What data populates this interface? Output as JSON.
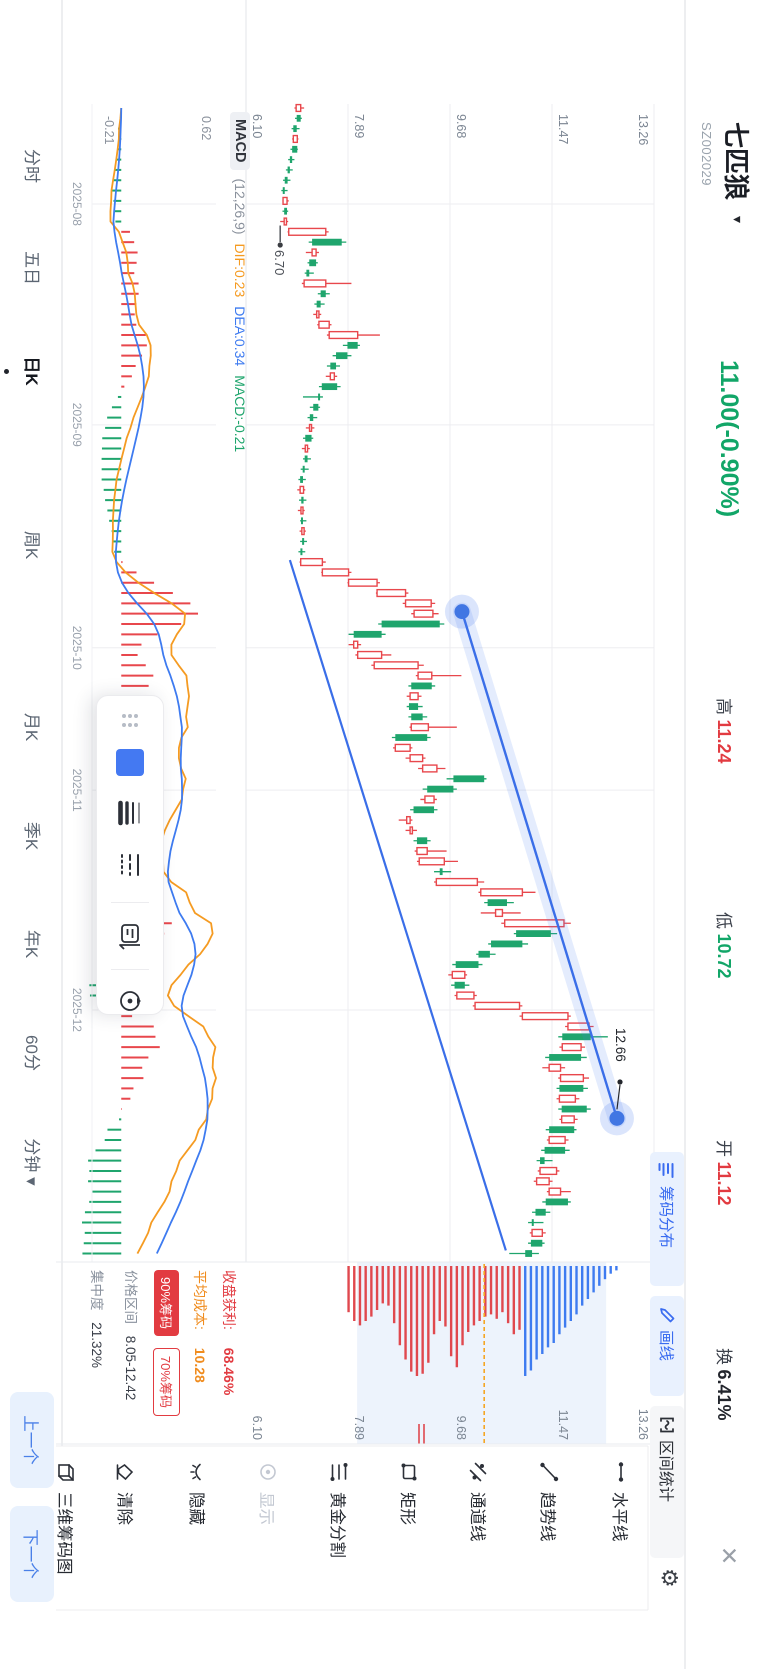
{
  "header": {
    "name": "七匹狼",
    "caret": "▾",
    "code": "SZ002029",
    "price": "11.00(-0.90%)",
    "stats": [
      {
        "label": "高",
        "value": "11.24",
        "color": "red"
      },
      {
        "label": "低",
        "value": "10.72",
        "color": "green"
      },
      {
        "label": "开",
        "value": "11.12",
        "color": "red"
      },
      {
        "label": "换",
        "value": "6.41%",
        "color": "dark"
      }
    ],
    "close_icon": "✕"
  },
  "chips": [
    {
      "label": "筹码分布",
      "active": true
    },
    {
      "label": "画线",
      "active": true
    },
    {
      "label": "区间统计",
      "active": false
    }
  ],
  "gear_icon": "⚙",
  "toolbar": {
    "items": [
      {
        "label": "水平线",
        "icon": "horizontal-line"
      },
      {
        "label": "趋势线",
        "icon": "trend-line"
      },
      {
        "label": "通道线",
        "icon": "channel-line"
      },
      {
        "label": "矩形",
        "icon": "rectangle"
      },
      {
        "label": "黄金分割",
        "icon": "golden-ratio"
      },
      {
        "label": "显示",
        "icon": "show",
        "disabled": true
      },
      {
        "label": "隐藏",
        "icon": "hide"
      },
      {
        "label": "清除",
        "icon": "clear"
      },
      {
        "label": "三维筹码图",
        "icon": "chip-3d"
      }
    ]
  },
  "tabs": {
    "items": [
      "分时",
      "五日",
      "日K",
      "周K",
      "月K",
      "季K",
      "年K",
      "60分",
      "分钟"
    ],
    "active_index": 2,
    "minute_caret": "▾"
  },
  "nav": {
    "prev": "上一个",
    "next": "下一个"
  },
  "macd": {
    "title": "MACD",
    "params": "(12,26,9)",
    "dif": "DIF:0.23",
    "dea": "DEA:0.34",
    "macd": "MACD:-0.21",
    "max": "0.62",
    "min": "-0.21"
  },
  "chip_panel": {
    "profit_label": "收盘获利:",
    "profit_value": "68.46%",
    "cost_label": "平均成本:",
    "cost_value": "10.28",
    "badge90": "90%筹码",
    "badge70": "70%筹码",
    "range_label": "价格区间",
    "range_value": "8.05-12.42",
    "conc_label": "集中度",
    "conc_value": "21.32%"
  },
  "markers": {
    "low": "6.70",
    "line_end": "12.66"
  },
  "colors": {
    "up": "#e8474c",
    "down": "#1fa56d",
    "dif": "#f59b22",
    "dea": "#3e7bf0",
    "accent_blue": "#3a6ee8",
    "chip_red": "#e0484e",
    "chip_blue": "#3e7bf0",
    "avg_line": "#f5a623",
    "grid": "#ededf0"
  },
  "chart_data": {
    "type": "candlestick",
    "title": "七匹狼 SZ002029 日K",
    "y_ticks": [
      "13.26",
      "11.47",
      "9.68",
      "7.89",
      "6.10"
    ],
    "y_top_value": 13.26,
    "y_tick_step": 1.79,
    "x_labels": [
      {
        "index": 9.3,
        "label": "2025-08"
      },
      {
        "index": 30.7,
        "label": "2025-09"
      },
      {
        "index": 52.3,
        "label": "2025-10"
      },
      {
        "index": 66.1,
        "label": "2025-11"
      },
      {
        "index": 87.4,
        "label": "2025-12"
      }
    ],
    "candles": [
      [
        6.98,
        7.12,
        6.95,
        7.06
      ],
      [
        7.06,
        7.08,
        6.96,
        6.99
      ],
      [
        6.99,
        7.04,
        6.9,
        6.93
      ],
      [
        6.93,
        7.02,
        6.91,
        7.0
      ],
      [
        7.0,
        7.01,
        6.88,
        6.91
      ],
      [
        6.91,
        6.95,
        6.84,
        6.87
      ],
      [
        6.87,
        6.92,
        6.8,
        6.83
      ],
      [
        6.83,
        6.88,
        6.75,
        6.78
      ],
      [
        6.78,
        6.83,
        6.72,
        6.75
      ],
      [
        6.75,
        6.85,
        6.74,
        6.82
      ],
      [
        6.82,
        6.84,
        6.74,
        6.77
      ],
      [
        6.77,
        6.84,
        6.7,
        6.81
      ],
      [
        6.85,
        7.55,
        6.83,
        7.5
      ],
      [
        7.78,
        7.86,
        7.2,
        7.26
      ],
      [
        7.26,
        7.38,
        7.15,
        7.33
      ],
      [
        7.33,
        7.36,
        7.18,
        7.21
      ],
      [
        7.21,
        7.29,
        7.13,
        7.16
      ],
      [
        7.12,
        7.95,
        7.08,
        7.5
      ],
      [
        7.5,
        7.57,
        7.36,
        7.41
      ],
      [
        7.41,
        7.48,
        7.3,
        7.34
      ],
      [
        7.34,
        7.42,
        7.28,
        7.38
      ],
      [
        7.38,
        7.6,
        7.35,
        7.56
      ],
      [
        7.56,
        8.45,
        7.52,
        8.06
      ],
      [
        8.06,
        8.1,
        7.8,
        7.88
      ],
      [
        7.88,
        7.95,
        7.62,
        7.68
      ],
      [
        7.68,
        7.75,
        7.52,
        7.58
      ],
      [
        7.58,
        7.7,
        7.5,
        7.65
      ],
      [
        7.7,
        7.76,
        7.38,
        7.43
      ],
      [
        7.4,
        7.45,
        7.1,
        7.37
      ],
      [
        7.37,
        7.4,
        7.22,
        7.28
      ],
      [
        7.28,
        7.35,
        7.18,
        7.22
      ],
      [
        7.22,
        7.3,
        7.15,
        7.25
      ],
      [
        7.25,
        7.28,
        7.1,
        7.14
      ],
      [
        7.14,
        7.22,
        7.08,
        7.18
      ],
      [
        7.18,
        7.24,
        7.1,
        7.13
      ],
      [
        7.13,
        7.2,
        7.06,
        7.1
      ],
      [
        7.1,
        7.15,
        7.02,
        7.05
      ],
      [
        7.05,
        7.14,
        7.0,
        7.11
      ],
      [
        7.11,
        7.16,
        7.03,
        7.07
      ],
      [
        7.07,
        7.13,
        7.01,
        7.1
      ],
      [
        7.1,
        7.16,
        7.05,
        7.08
      ],
      [
        7.08,
        7.15,
        7.04,
        7.12
      ],
      [
        7.12,
        7.17,
        7.05,
        7.09
      ],
      [
        7.09,
        7.14,
        7.02,
        7.06
      ],
      [
        7.06,
        7.5,
        7.04,
        7.44
      ],
      [
        7.44,
        7.95,
        7.42,
        7.9
      ],
      [
        7.9,
        8.45,
        7.88,
        8.4
      ],
      [
        8.4,
        8.95,
        8.38,
        8.9
      ],
      [
        8.9,
        9.42,
        8.85,
        9.35
      ],
      [
        9.05,
        9.48,
        9.0,
        9.38
      ],
      [
        9.5,
        9.58,
        8.42,
        8.48
      ],
      [
        8.48,
        8.55,
        7.9,
        7.99
      ],
      [
        7.99,
        8.12,
        7.9,
        8.06
      ],
      [
        8.06,
        8.65,
        8.02,
        8.48
      ],
      [
        8.35,
        9.22,
        8.3,
        9.12
      ],
      [
        9.12,
        9.88,
        9.08,
        9.36
      ],
      [
        9.36,
        9.42,
        8.95,
        9.0
      ],
      [
        8.98,
        9.18,
        8.92,
        9.12
      ],
      [
        9.12,
        9.2,
        8.92,
        8.96
      ],
      [
        9.2,
        9.28,
        8.95,
        9.0
      ],
      [
        9.0,
        9.8,
        8.97,
        9.3
      ],
      [
        9.28,
        9.34,
        8.66,
        8.72
      ],
      [
        8.72,
        9.02,
        8.68,
        8.98
      ],
      [
        8.98,
        9.25,
        8.9,
        9.2
      ],
      [
        9.2,
        9.6,
        9.12,
        9.45
      ],
      [
        10.28,
        10.32,
        9.62,
        9.74
      ],
      [
        9.74,
        9.8,
        9.2,
        9.28
      ],
      [
        9.24,
        9.45,
        9.16,
        9.4
      ],
      [
        9.4,
        9.46,
        8.98,
        9.04
      ],
      [
        8.92,
        9.02,
        8.78,
        8.98
      ],
      [
        8.98,
        9.1,
        8.9,
        9.02
      ],
      [
        9.28,
        9.34,
        9.04,
        9.1
      ],
      [
        9.1,
        9.62,
        9.06,
        9.28
      ],
      [
        9.14,
        9.82,
        9.1,
        9.58
      ],
      [
        9.55,
        9.7,
        9.4,
        9.5
      ],
      [
        9.44,
        10.28,
        9.4,
        10.16
      ],
      [
        10.22,
        11.18,
        10.18,
        10.95
      ],
      [
        10.68,
        10.8,
        10.28,
        10.34
      ],
      [
        10.48,
        10.92,
        10.22,
        10.6
      ],
      [
        10.64,
        11.8,
        10.58,
        11.68
      ],
      [
        11.45,
        11.56,
        10.8,
        10.84
      ],
      [
        10.95,
        11.05,
        10.35,
        10.4
      ],
      [
        10.38,
        10.48,
        10.14,
        10.18
      ],
      [
        10.18,
        10.25,
        9.72,
        9.78
      ],
      [
        9.72,
        9.98,
        9.65,
        9.94
      ],
      [
        9.94,
        10.02,
        9.7,
        9.76
      ],
      [
        9.8,
        10.15,
        9.76,
        10.1
      ],
      [
        10.12,
        10.95,
        10.08,
        10.9
      ],
      [
        10.95,
        11.8,
        10.9,
        11.75
      ],
      [
        11.75,
        12.2,
        11.7,
        12.12
      ],
      [
        12.15,
        12.45,
        11.58,
        11.65
      ],
      [
        11.65,
        12.05,
        11.6,
        11.98
      ],
      [
        11.98,
        12.08,
        11.35,
        11.42
      ],
      [
        11.42,
        11.7,
        11.3,
        11.62
      ],
      [
        11.62,
        12.12,
        11.58,
        12.02
      ],
      [
        12.02,
        12.1,
        11.55,
        11.6
      ],
      [
        11.6,
        11.95,
        11.55,
        11.88
      ],
      [
        12.08,
        12.15,
        11.58,
        11.64
      ],
      [
        11.64,
        11.92,
        11.6,
        11.86
      ],
      [
        11.86,
        11.9,
        11.36,
        11.42
      ],
      [
        11.42,
        11.76,
        11.38,
        11.7
      ],
      [
        11.7,
        11.78,
        11.28,
        11.34
      ],
      [
        11.34,
        11.48,
        11.2,
        11.26
      ],
      [
        11.26,
        11.6,
        11.22,
        11.55
      ],
      [
        11.2,
        11.48,
        11.15,
        11.42
      ],
      [
        11.42,
        11.8,
        11.38,
        11.62
      ],
      [
        11.75,
        11.8,
        11.3,
        11.36
      ],
      [
        11.36,
        11.44,
        11.12,
        11.18
      ],
      [
        11.15,
        11.32,
        11.05,
        11.12
      ],
      [
        11.12,
        11.36,
        11.08,
        11.3
      ],
      [
        11.3,
        11.34,
        11.05,
        11.1
      ],
      [
        11.12,
        11.24,
        10.72,
        11.0
      ]
    ],
    "macd_panel": {
      "params": [
        12,
        26,
        9
      ],
      "displayed": {
        "dif": 0.23,
        "dea": 0.34,
        "macd": -0.21,
        "max": 0.62,
        "min": -0.21
      }
    },
    "annotations": {
      "channel_upper": {
        "from": [
          48.8,
          9.89
        ],
        "to": [
          97.9,
          12.61
        ],
        "selected": true,
        "end_label": "12.66"
      },
      "channel_lower": {
        "from": [
          43.8,
          6.87
        ],
        "to": [
          110.7,
          10.66
        ]
      },
      "low_marker": {
        "index": 11,
        "price": 6.7,
        "label": "6.70"
      }
    },
    "chip_distribution": {
      "boundary_price": 11.0,
      "band": [
        8.05,
        12.42
      ],
      "avg_cost": 10.28,
      "prices": [
        7.9,
        8.0,
        8.1,
        8.2,
        8.3,
        8.4,
        8.5,
        8.6,
        8.7,
        8.8,
        8.9,
        9.0,
        9.1,
        9.2,
        9.3,
        9.4,
        9.5,
        9.6,
        9.7,
        9.8,
        9.9,
        10.0,
        10.1,
        10.2,
        10.3,
        10.4,
        10.5,
        10.6,
        10.7,
        10.8,
        10.9,
        11.0,
        11.1,
        11.2,
        11.3,
        11.4,
        11.5,
        11.6,
        11.7,
        11.8,
        11.9,
        12.0,
        12.1,
        12.2,
        12.3,
        12.4,
        12.5,
        12.6
      ],
      "lengths": [
        0.42,
        0.5,
        0.54,
        0.5,
        0.46,
        0.4,
        0.34,
        0.36,
        0.52,
        0.72,
        0.85,
        0.96,
        1.0,
        0.98,
        0.88,
        0.62,
        0.5,
        0.55,
        0.82,
        0.92,
        0.72,
        0.6,
        0.54,
        0.5,
        0.46,
        0.44,
        0.48,
        0.42,
        0.52,
        0.62,
        0.58,
        1.0,
        0.95,
        0.85,
        0.8,
        0.74,
        0.7,
        0.62,
        0.56,
        0.5,
        0.44,
        0.36,
        0.3,
        0.24,
        0.18,
        0.12,
        0.07,
        0.04
      ]
    }
  }
}
